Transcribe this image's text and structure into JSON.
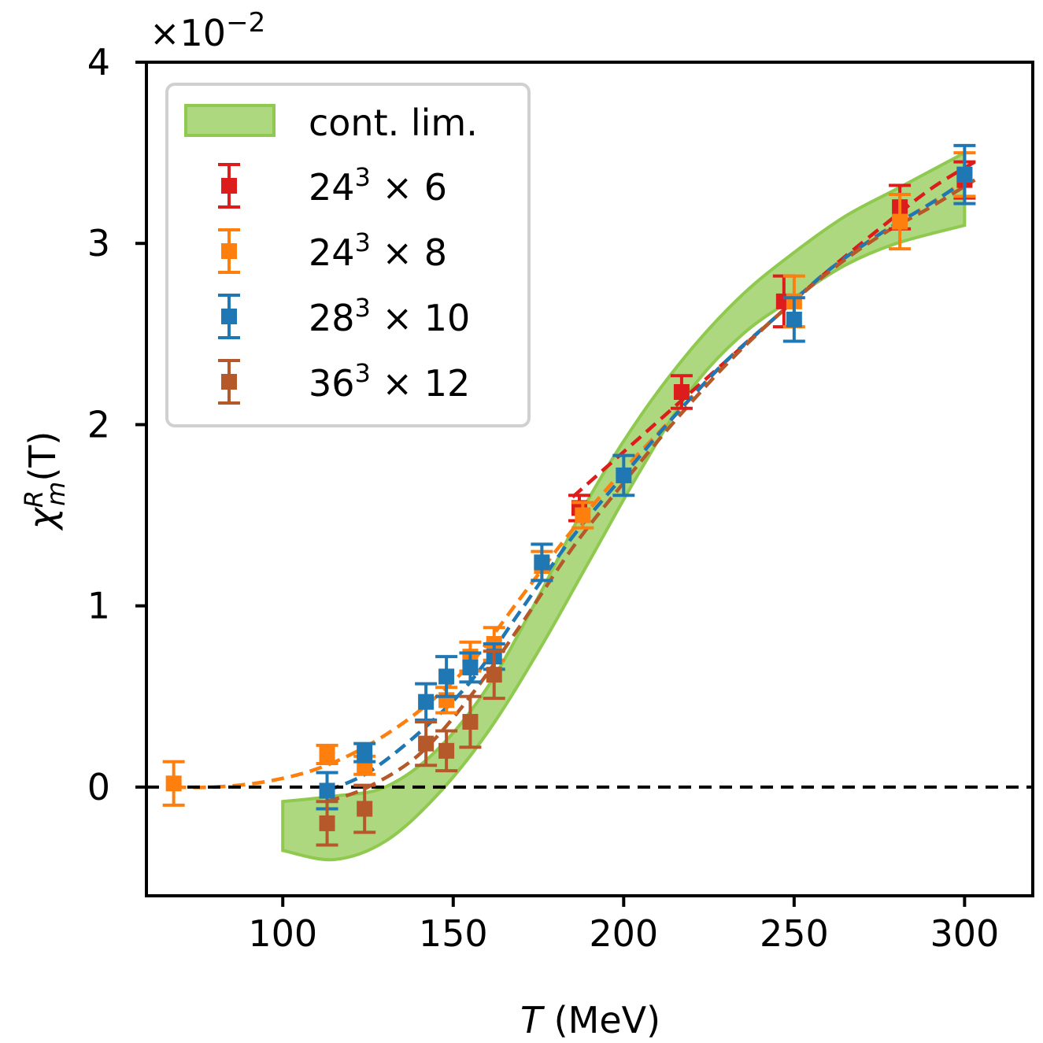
{
  "chart_data": {
    "type": "scatter",
    "xlabel_italic": "T",
    "xlabel_rest": " (MeV)",
    "ylabel": "χ_m^R(T)",
    "ylabel_parts": {
      "base": "χ",
      "sup": "R",
      "sub": "m",
      "rest": "(T)"
    },
    "offset_text": {
      "base": "×10",
      "exp": "−2"
    },
    "xlim": [
      60,
      320
    ],
    "ylim": [
      -0.6,
      4.0
    ],
    "xticks": [
      100,
      150,
      200,
      250,
      300
    ],
    "yticks": [
      0,
      1,
      2,
      3,
      4
    ],
    "xtick_labels": [
      "100",
      "150",
      "200",
      "250",
      "300"
    ],
    "ytick_labels": [
      "0",
      "1",
      "2",
      "3",
      "4"
    ],
    "zero_line": 0,
    "legend_position": "upper-left",
    "band": {
      "name": "cont. lim.",
      "color": "#8fc94f",
      "x": [
        100,
        115,
        130,
        145,
        160,
        175,
        190,
        205,
        220,
        235,
        250,
        265,
        280,
        300
      ],
      "upper": [
        -0.08,
        -0.05,
        0.0,
        0.2,
        0.55,
        1.05,
        1.6,
        2.05,
        2.42,
        2.72,
        2.95,
        3.15,
        3.3,
        3.5
      ],
      "lower": [
        -0.35,
        -0.4,
        -0.3,
        -0.05,
        0.3,
        0.75,
        1.25,
        1.75,
        2.2,
        2.5,
        2.7,
        2.88,
        3.0,
        3.1
      ]
    },
    "series": [
      {
        "name": "24",
        "exp": "3",
        "suffix": " × 6",
        "color": "#dd1c1c",
        "points": [
          {
            "x": 187,
            "y": 1.54,
            "err": 0.07
          },
          {
            "x": 217,
            "y": 2.18,
            "err": 0.09
          },
          {
            "x": 247,
            "y": 2.68,
            "err": 0.14
          },
          {
            "x": 281,
            "y": 3.2,
            "err": 0.12
          },
          {
            "x": 300,
            "y": 3.35,
            "err": 0.1
          }
        ],
        "curve": {
          "x": [
            185,
            200,
            215,
            230,
            245,
            260,
            275,
            290,
            303
          ],
          "y": [
            1.6,
            1.85,
            2.1,
            2.35,
            2.6,
            2.85,
            3.08,
            3.3,
            3.45
          ]
        }
      },
      {
        "name": "24",
        "exp": "3",
        "suffix": " × 8",
        "color": "#ff7f0e",
        "points": [
          {
            "x": 68,
            "y": 0.02,
            "err": 0.12
          },
          {
            "x": 113,
            "y": 0.18,
            "err": 0.05
          },
          {
            "x": 124,
            "y": 0.12,
            "err": 0.05
          },
          {
            "x": 148,
            "y": 0.48,
            "err": 0.07
          },
          {
            "x": 155,
            "y": 0.72,
            "err": 0.08
          },
          {
            "x": 162,
            "y": 0.79,
            "err": 0.09
          },
          {
            "x": 176,
            "y": 1.22,
            "err": 0.08
          },
          {
            "x": 188,
            "y": 1.5,
            "err": 0.07
          },
          {
            "x": 250,
            "y": 2.68,
            "err": 0.14
          },
          {
            "x": 281,
            "y": 3.12,
            "err": 0.15
          },
          {
            "x": 300,
            "y": 3.38,
            "err": 0.12
          }
        ],
        "curve": {
          "x": [
            68,
            80,
            95,
            110,
            125,
            140,
            155,
            170,
            185,
            200,
            215,
            230,
            245,
            260,
            275,
            290,
            303
          ],
          "y": [
            0.0,
            0.0,
            0.03,
            0.1,
            0.23,
            0.42,
            0.68,
            1.05,
            1.42,
            1.75,
            2.05,
            2.35,
            2.6,
            2.85,
            3.05,
            3.22,
            3.38
          ]
        }
      },
      {
        "name": "28",
        "exp": "3",
        "suffix": " × 10",
        "color": "#1f77b4",
        "points": [
          {
            "x": 113,
            "y": -0.02,
            "err": 0.1
          },
          {
            "x": 124,
            "y": 0.19,
            "err": 0.05
          },
          {
            "x": 142,
            "y": 0.47,
            "err": 0.1
          },
          {
            "x": 148,
            "y": 0.61,
            "err": 0.11
          },
          {
            "x": 155,
            "y": 0.66,
            "err": 0.08
          },
          {
            "x": 162,
            "y": 0.72,
            "err": 0.07
          },
          {
            "x": 176,
            "y": 1.24,
            "err": 0.1
          },
          {
            "x": 200,
            "y": 1.72,
            "err": 0.11
          },
          {
            "x": 250,
            "y": 2.58,
            "err": 0.12
          },
          {
            "x": 300,
            "y": 3.38,
            "err": 0.16
          }
        ],
        "curve": {
          "x": [
            113,
            125,
            140,
            155,
            170,
            185,
            200,
            215,
            230,
            245,
            260,
            275,
            290,
            303
          ],
          "y": [
            -0.02,
            0.08,
            0.3,
            0.58,
            0.98,
            1.38,
            1.72,
            2.05,
            2.35,
            2.6,
            2.85,
            3.05,
            3.22,
            3.38
          ]
        }
      },
      {
        "name": "36",
        "exp": "3",
        "suffix": " × 12",
        "color": "#b5582a",
        "points": [
          {
            "x": 113,
            "y": -0.2,
            "err": 0.12
          },
          {
            "x": 124,
            "y": -0.12,
            "err": 0.13
          },
          {
            "x": 142,
            "y": 0.24,
            "err": 0.12
          },
          {
            "x": 148,
            "y": 0.2,
            "err": 0.11
          },
          {
            "x": 155,
            "y": 0.36,
            "err": 0.14
          },
          {
            "x": 162,
            "y": 0.62,
            "err": 0.13
          }
        ],
        "curve": {
          "x": [
            113,
            125,
            140,
            155,
            170,
            185,
            200,
            215,
            230,
            245,
            260,
            275,
            290,
            303
          ],
          "y": [
            -0.08,
            0.0,
            0.18,
            0.5,
            0.9,
            1.32,
            1.68,
            2.02,
            2.33,
            2.6,
            2.84,
            3.04,
            3.2,
            3.35
          ]
        }
      }
    ]
  }
}
